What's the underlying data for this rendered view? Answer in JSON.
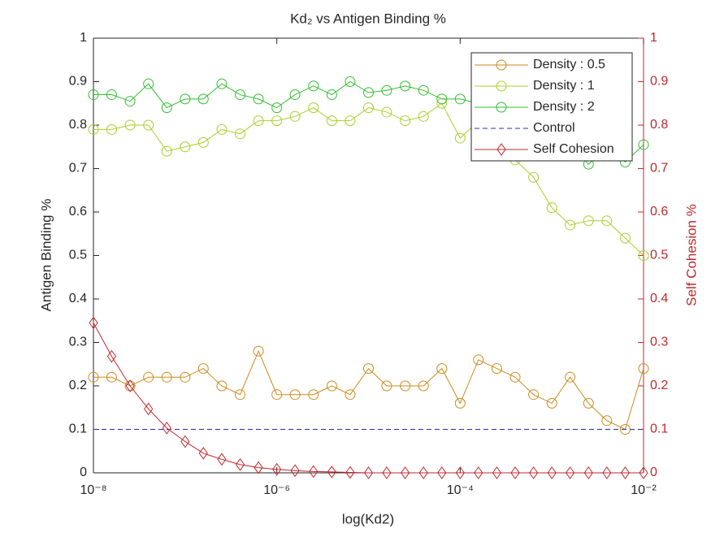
{
  "chart_data": {
    "type": "line",
    "title": "Kd₂ vs Antigen Binding %",
    "xlabel": "log(Kd2)",
    "ylabel": "Antigen Binding %",
    "y2label": "Self Cohesion %",
    "xscale": "log",
    "xlim": [
      1e-08,
      0.01
    ],
    "xticks": [
      {
        "value": 1e-08,
        "label": "10⁻⁸"
      },
      {
        "value": 1e-06,
        "label": "10⁻⁶"
      },
      {
        "value": 0.0001,
        "label": "10⁻⁴"
      },
      {
        "value": 0.01,
        "label": "10⁻²"
      }
    ],
    "ylim": [
      0,
      1
    ],
    "yticks": [
      0,
      0.1,
      0.2,
      0.3,
      0.4,
      0.5,
      0.6,
      0.7,
      0.8,
      0.9,
      1
    ],
    "y2lim": [
      0,
      1
    ],
    "y2ticks": [
      0,
      0.1,
      0.2,
      0.3,
      0.4,
      0.5,
      0.6,
      0.7,
      0.8,
      0.9,
      1
    ],
    "y2color": "#c0282d",
    "grid": false,
    "legend": "northeast",
    "x": [
      1e-08,
      1.58e-08,
      2.51e-08,
      3.98e-08,
      6.31e-08,
      1e-07,
      1.58e-07,
      2.51e-07,
      3.98e-07,
      6.31e-07,
      1e-06,
      1.58e-06,
      2.51e-06,
      3.98e-06,
      6.31e-06,
      1e-05,
      1.58e-05,
      2.51e-05,
      3.98e-05,
      6.31e-05,
      0.0001,
      0.000158,
      0.000251,
      0.000398,
      0.000631,
      0.001,
      0.00158,
      0.00251,
      0.00398,
      0.00631,
      0.01
    ],
    "series": [
      {
        "name": "Density : 0.5",
        "color": "#cc8a1e",
        "marker": "o",
        "linestyle": "solid",
        "values": [
          0.22,
          0.22,
          0.2,
          0.22,
          0.22,
          0.22,
          0.24,
          0.2,
          0.18,
          0.28,
          0.18,
          0.18,
          0.18,
          0.2,
          0.18,
          0.24,
          0.2,
          0.2,
          0.2,
          0.24,
          0.16,
          0.26,
          0.24,
          0.22,
          0.18,
          0.16,
          0.22,
          0.16,
          0.12,
          0.1,
          0.24
        ]
      },
      {
        "name": "Density : 1",
        "color": "#a8cf2a",
        "marker": "o",
        "linestyle": "solid",
        "values": [
          0.79,
          0.79,
          0.8,
          0.8,
          0.74,
          0.75,
          0.76,
          0.79,
          0.78,
          0.81,
          0.81,
          0.82,
          0.84,
          0.81,
          0.81,
          0.84,
          0.83,
          0.81,
          0.82,
          0.85,
          0.77,
          0.81,
          0.76,
          0.72,
          0.68,
          0.61,
          0.57,
          0.58,
          0.58,
          0.54,
          0.5
        ]
      },
      {
        "name": "Density : 2",
        "color": "#2fbf2f",
        "marker": "o",
        "linestyle": "solid",
        "values": [
          0.87,
          0.87,
          0.855,
          0.895,
          0.84,
          0.86,
          0.86,
          0.895,
          0.87,
          0.86,
          0.84,
          0.87,
          0.89,
          0.87,
          0.9,
          0.875,
          0.88,
          0.89,
          0.88,
          0.86,
          0.86,
          0.85,
          0.84,
          0.82,
          0.8,
          0.78,
          0.76,
          0.71,
          0.75,
          0.715,
          0.755
        ]
      },
      {
        "name": "Control",
        "color": "#2b2bb0",
        "marker": null,
        "linestyle": "dashed",
        "values": [
          0.1,
          0.1,
          0.1,
          0.1,
          0.1,
          0.1,
          0.1,
          0.1,
          0.1,
          0.1,
          0.1,
          0.1,
          0.1,
          0.1,
          0.1,
          0.1,
          0.1,
          0.1,
          0.1,
          0.1,
          0.1,
          0.1,
          0.1,
          0.1,
          0.1,
          0.1,
          0.1,
          0.1,
          0.1,
          0.1,
          0.1
        ]
      },
      {
        "name": "Self Cohesion",
        "color": "#c0282d",
        "marker": "d",
        "linestyle": "solid",
        "axis": "y2",
        "values": [
          0.345,
          0.268,
          0.2,
          0.147,
          0.103,
          0.072,
          0.045,
          0.031,
          0.019,
          0.012,
          0.008,
          0.005,
          0.003,
          0.002,
          0.001,
          0,
          0,
          0,
          0,
          0,
          0,
          0,
          0,
          0,
          0,
          0,
          0,
          0,
          0,
          0,
          0
        ]
      }
    ]
  }
}
